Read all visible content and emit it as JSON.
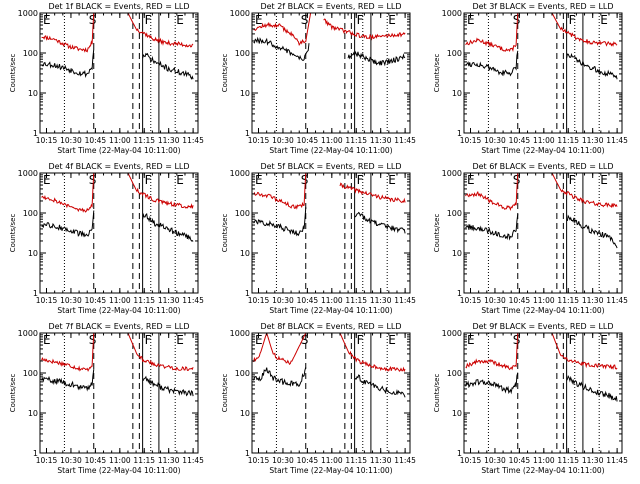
{
  "figure": {
    "panels": [
      {
        "title": "Det 1f BLACK = Events, RED = LLD"
      },
      {
        "title": "Det 2f BLACK = Events, RED = LLD"
      },
      {
        "title": "Det 3f BLACK = Events, RED = LLD"
      },
      {
        "title": "Det 4f BLACK = Events, RED = LLD"
      },
      {
        "title": "Det 5f BLACK = Events, RED = LLD"
      },
      {
        "title": "Det 6f BLACK = Events, RED = LLD"
      },
      {
        "title": "Det 7f BLACK = Events, RED = LLD"
      },
      {
        "title": "Det 8f BLACK = Events, RED = LLD"
      },
      {
        "title": "Det 9f BLACK = Events, RED = LLD"
      }
    ]
  },
  "chart_data": {
    "type": "line",
    "grid": false,
    "xlabel": "Start Time (22-May-04 10:11:00)",
    "ylabel": "Counts/sec",
    "x_ticks": [
      "10:15",
      "10:30",
      "10:45",
      "11:00",
      "11:15",
      "11:30",
      "11:45"
    ],
    "y_ticks": [
      "1",
      "10",
      "100",
      "1000"
    ],
    "ylim": [
      1,
      1000
    ],
    "y_scale": "log",
    "xlim": [
      "10:11",
      "11:48"
    ],
    "series_colors": {
      "events": "#000000",
      "lld": "#cc0000"
    },
    "marker_labels": {
      "e": "E",
      "s": "S",
      "f": "F"
    },
    "markers": {
      "dotted": [
        "10:26",
        "11:19",
        "11:34"
      ],
      "dashed": [
        "10:44",
        "11:08",
        "11:12"
      ],
      "solid": [
        "11:14",
        "11:24"
      ]
    },
    "panels": [
      {
        "detector": "1f",
        "lld": {
          "x": [
            "10:12",
            "10:20",
            "10:28",
            "10:35",
            "10:40",
            "10:43",
            "10:44"
          ],
          "y": [
            260,
            220,
            150,
            125,
            120,
            180,
            1000
          ],
          "x2": [
            "11:05",
            "11:10",
            "11:14",
            "11:20",
            "11:28",
            "11:35",
            "11:45"
          ],
          "y2": [
            1000,
            400,
            330,
            230,
            180,
            170,
            150
          ]
        },
        "events": {
          "x": [
            "10:12",
            "10:20",
            "10:28",
            "10:35",
            "10:40",
            "10:43",
            "10:44"
          ],
          "y": [
            55,
            50,
            40,
            32,
            30,
            45,
            120
          ],
          "x2": [
            "11:14",
            "11:16",
            "11:20",
            "11:25",
            "11:30",
            "11:40",
            "11:45"
          ],
          "y2": [
            80,
            90,
            65,
            50,
            40,
            30,
            25
          ]
        }
      },
      {
        "detector": "2f",
        "lld": {
          "x": [
            "10:12",
            "10:20",
            "10:28",
            "10:35",
            "10:40",
            "10:44",
            "10:47"
          ],
          "y": [
            400,
            500,
            480,
            300,
            180,
            200,
            1000
          ],
          "x2": [
            "10:55",
            "11:00",
            "11:08",
            "11:14",
            "11:20",
            "11:30",
            "11:45"
          ],
          "y2": [
            700,
            450,
            350,
            300,
            250,
            260,
            300
          ]
        },
        "events": {
          "x": [
            "10:12",
            "10:20",
            "10:28",
            "10:35",
            "10:40",
            "10:44",
            "10:46"
          ],
          "y": [
            200,
            190,
            140,
            100,
            70,
            80,
            150
          ],
          "x2": [
            "11:10",
            "11:14",
            "11:20",
            "11:25",
            "11:30",
            "11:40",
            "11:45"
          ],
          "y2": [
            80,
            100,
            80,
            65,
            55,
            70,
            80
          ]
        }
      },
      {
        "detector": "3f",
        "lld": {
          "x": [
            "10:12",
            "10:20",
            "10:28",
            "10:35",
            "10:40",
            "10:43",
            "10:44"
          ],
          "y": [
            170,
            210,
            160,
            125,
            115,
            170,
            1000
          ],
          "x2": [
            "11:05",
            "11:10",
            "11:14",
            "11:20",
            "11:28",
            "11:35",
            "11:45"
          ],
          "y2": [
            1000,
            420,
            340,
            240,
            190,
            175,
            165
          ]
        },
        "events": {
          "x": [
            "10:12",
            "10:20",
            "10:28",
            "10:35",
            "10:40",
            "10:43",
            "10:44"
          ],
          "y": [
            55,
            52,
            40,
            32,
            30,
            45,
            120
          ],
          "x2": [
            "11:14",
            "11:16",
            "11:20",
            "11:25",
            "11:30",
            "11:40",
            "11:45"
          ],
          "y2": [
            80,
            90,
            65,
            50,
            40,
            30,
            25
          ]
        }
      },
      {
        "detector": "4f",
        "lld": {
          "x": [
            "10:12",
            "10:20",
            "10:28",
            "10:35",
            "10:40",
            "10:43",
            "10:44"
          ],
          "y": [
            260,
            210,
            150,
            120,
            115,
            160,
            1000
          ],
          "x2": [
            "11:05",
            "11:10",
            "11:14",
            "11:20",
            "11:28",
            "11:35",
            "11:45"
          ],
          "y2": [
            1000,
            380,
            300,
            220,
            175,
            160,
            140
          ]
        },
        "events": {
          "x": [
            "10:12",
            "10:20",
            "10:28",
            "10:35",
            "10:40",
            "10:43",
            "10:44"
          ],
          "y": [
            50,
            48,
            38,
            30,
            28,
            45,
            110
          ],
          "x2": [
            "11:14",
            "11:16",
            "11:20",
            "11:25",
            "11:30",
            "11:40",
            "11:45"
          ],
          "y2": [
            75,
            85,
            60,
            48,
            38,
            28,
            22
          ]
        }
      },
      {
        "detector": "5f",
        "lld": {
          "x": [
            "10:12",
            "10:20",
            "10:28",
            "10:35",
            "10:40",
            "10:43",
            "10:44"
          ],
          "y": [
            310,
            280,
            200,
            150,
            140,
            170,
            1000
          ],
          "x2": [
            "11:05",
            "11:10",
            "11:14",
            "11:20",
            "11:28",
            "11:35",
            "11:45"
          ],
          "y2": [
            500,
            430,
            380,
            320,
            260,
            220,
            200
          ]
        },
        "events": {
          "x": [
            "10:12",
            "10:20",
            "10:28",
            "10:35",
            "10:40",
            "10:43",
            "10:44"
          ],
          "y": [
            60,
            56,
            45,
            35,
            32,
            45,
            120
          ],
          "x2": [
            "11:14",
            "11:16",
            "11:20",
            "11:25",
            "11:30",
            "11:40",
            "11:45"
          ],
          "y2": [
            90,
            100,
            75,
            60,
            50,
            40,
            35
          ]
        }
      },
      {
        "detector": "6f",
        "lld": {
          "x": [
            "10:12",
            "10:20",
            "10:28",
            "10:35",
            "10:40",
            "10:43",
            "10:44"
          ],
          "y": [
            280,
            300,
            190,
            140,
            130,
            170,
            1000
          ],
          "x2": [
            "11:05",
            "11:10",
            "11:14",
            "11:20",
            "11:28",
            "11:35",
            "11:45"
          ],
          "y2": [
            1000,
            400,
            320,
            230,
            180,
            165,
            150
          ]
        },
        "events": {
          "x": [
            "10:12",
            "10:20",
            "10:28",
            "10:35",
            "10:40",
            "10:43",
            "10:44"
          ],
          "y": [
            45,
            42,
            34,
            28,
            26,
            40,
            100
          ],
          "x2": [
            "11:14",
            "11:16",
            "11:20",
            "11:25",
            "11:30",
            "11:40",
            "11:45"
          ],
          "y2": [
            70,
            80,
            58,
            45,
            35,
            25,
            15
          ]
        }
      },
      {
        "detector": "7f",
        "lld": {
          "x": [
            "10:12",
            "10:20",
            "10:28",
            "10:35",
            "10:40",
            "10:43",
            "10:44"
          ],
          "y": [
            220,
            190,
            160,
            130,
            120,
            160,
            1000
          ],
          "x2": [
            "11:05",
            "11:10",
            "11:14",
            "11:20",
            "11:28",
            "11:35",
            "11:45"
          ],
          "y2": [
            1000,
            330,
            220,
            170,
            145,
            130,
            125
          ]
        },
        "events": {
          "x": [
            "10:12",
            "10:20",
            "10:28",
            "10:35",
            "10:40",
            "10:43",
            "10:44"
          ],
          "y": [
            70,
            65,
            55,
            45,
            40,
            55,
            120
          ],
          "x2": [
            "11:14",
            "11:16",
            "11:20",
            "11:25",
            "11:30",
            "11:40",
            "11:45"
          ],
          "y2": [
            70,
            75,
            55,
            45,
            38,
            32,
            30
          ]
        }
      },
      {
        "detector": "8f",
        "lld": {
          "x": [
            "10:12",
            "10:16",
            "10:20",
            "10:24",
            "10:28",
            "10:35",
            "10:44"
          ],
          "y": [
            200,
            300,
            1000,
            300,
            220,
            180,
            1000
          ],
          "x2": [
            "11:05",
            "11:10",
            "11:14",
            "11:20",
            "11:28",
            "11:35",
            "11:45"
          ],
          "y2": [
            1000,
            350,
            230,
            170,
            140,
            125,
            120
          ]
        },
        "events": {
          "x": [
            "10:12",
            "10:16",
            "10:20",
            "10:24",
            "10:30",
            "10:40",
            "10:44"
          ],
          "y": [
            70,
            75,
            120,
            75,
            60,
            50,
            120
          ],
          "x2": [
            "11:14",
            "11:16",
            "11:20",
            "11:25",
            "11:30",
            "11:40",
            "11:45"
          ],
          "y2": [
            75,
            80,
            60,
            50,
            40,
            32,
            28
          ]
        }
      },
      {
        "detector": "9f",
        "lld": {
          "x": [
            "10:12",
            "10:20",
            "10:28",
            "10:35",
            "10:40",
            "10:43",
            "10:44"
          ],
          "y": [
            150,
            200,
            190,
            150,
            130,
            160,
            1000
          ],
          "x2": [
            "11:05",
            "11:10",
            "11:14",
            "11:20",
            "11:28",
            "11:35",
            "11:45"
          ],
          "y2": [
            1000,
            300,
            220,
            180,
            160,
            150,
            140
          ]
        },
        "events": {
          "x": [
            "10:12",
            "10:20",
            "10:28",
            "10:35",
            "10:40",
            "10:43",
            "10:44"
          ],
          "y": [
            50,
            60,
            55,
            40,
            35,
            50,
            110
          ],
          "x2": [
            "11:14",
            "11:16",
            "11:20",
            "11:25",
            "11:30",
            "11:40",
            "11:45"
          ],
          "y2": [
            70,
            75,
            55,
            45,
            35,
            28,
            22
          ]
        }
      }
    ]
  }
}
